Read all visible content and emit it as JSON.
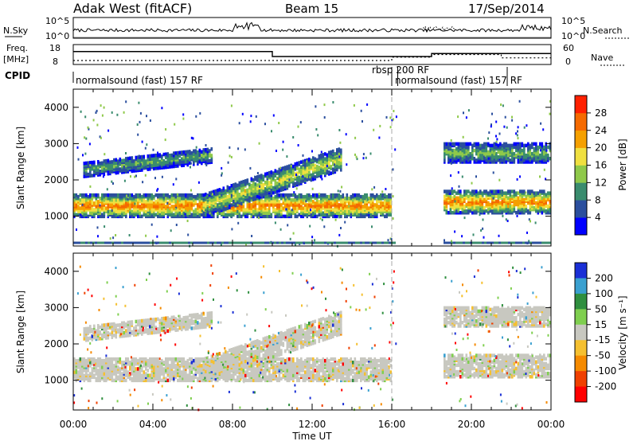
{
  "header": {
    "station": "Adak West (fitACF)",
    "beam": "Beam 15",
    "date": "17/Sep/2014"
  },
  "top_panels": {
    "nsky_label": "N.Sky",
    "nsearch_label": "N.Search",
    "nsky_ticks": [
      "10^5",
      "10^0"
    ],
    "nsearch_ticks": [
      "10^5",
      "10^0"
    ],
    "freq_label": "Freq.",
    "freq_unit": "[MHz]",
    "freq_ticks": [
      "18",
      "8"
    ],
    "nave_label": "Nave",
    "nave_ticks": [
      "60",
      "0"
    ],
    "cpid_label": "CPID",
    "cpid_segments": [
      {
        "label": "normalsound (fast) 157 RF",
        "start_h": 0.0,
        "end_h": 16.0
      },
      {
        "label": "rbsp 200 RF",
        "start_h": 16.0,
        "end_h": 16.3
      },
      {
        "label": "normalsound (fast) 157 RF",
        "start_h": 16.3,
        "end_h": 21.8
      }
    ],
    "freq_series": [
      {
        "start_h": 0.0,
        "end_h": 10.0,
        "mhz": 14.5
      },
      {
        "start_h": 10.0,
        "end_h": 18.0,
        "mhz": 12.0
      },
      {
        "start_h": 18.0,
        "end_h": 24.0,
        "mhz": 13.5
      }
    ],
    "nave_series": [
      {
        "start_h": 0.0,
        "end_h": 16.0,
        "value": 12
      },
      {
        "start_h": 16.0,
        "end_h": 18.0,
        "value": 22
      },
      {
        "start_h": 18.0,
        "end_h": 21.5,
        "value": 30
      },
      {
        "start_h": 21.5,
        "end_h": 24.0,
        "value": 20
      }
    ]
  },
  "chart_data": [
    {
      "type": "heatmap",
      "name": "power",
      "ylabel": "Slant Range [km]",
      "xlabel": "",
      "xlim_hours": [
        0,
        24
      ],
      "ylim_km": [
        180,
        4500
      ],
      "yticks": [
        1000,
        2000,
        3000,
        4000
      ],
      "colorbar": {
        "label": "Power [dB]",
        "ticks": [
          4,
          8,
          12,
          16,
          20,
          24,
          28
        ],
        "colors": [
          "#0000ff",
          "#2b4f9e",
          "#3a8c6e",
          "#8fc94a",
          "#f0e040",
          "#f5a000",
          "#f56a00",
          "#ff2000"
        ]
      },
      "echo_bands": [
        {
          "start_h": 0.0,
          "end_h": 16.0,
          "range_km": [
            1000,
            1600
          ],
          "power_db": 26
        },
        {
          "start_h": 0.5,
          "end_h": 7.0,
          "range_km": [
            2100,
            2700
          ],
          "power_db": 12
        },
        {
          "start_h": 6.5,
          "end_h": 13.5,
          "range_km": [
            1500,
            3000
          ],
          "power_db": 18
        },
        {
          "start_h": 18.6,
          "end_h": 24.0,
          "range_km": [
            1100,
            1700
          ],
          "power_db": 26
        },
        {
          "start_h": 18.6,
          "end_h": 24.0,
          "range_km": [
            2500,
            3000
          ],
          "power_db": 14
        }
      ]
    },
    {
      "type": "heatmap",
      "name": "velocity",
      "ylabel": "Slant Range [km]",
      "xlabel": "Time UT",
      "xlim_hours": [
        0,
        24
      ],
      "ylim_km": [
        180,
        4500
      ],
      "yticks": [
        1000,
        2000,
        3000,
        4000
      ],
      "xticks": [
        "00:00",
        "04:00",
        "08:00",
        "12:00",
        "16:00",
        "20:00",
        "00:00"
      ],
      "colorbar": {
        "label": "Velocity [m s⁻¹]",
        "ticks": [
          200,
          100,
          50,
          15,
          -15,
          -50,
          -100,
          -200
        ],
        "colors": [
          "#1a2fd6",
          "#3aa0d0",
          "#2f8f3f",
          "#7fcf4f",
          "#c8c8c0",
          "#f5c030",
          "#f58a00",
          "#f04000",
          "#ff0000"
        ]
      }
    }
  ]
}
